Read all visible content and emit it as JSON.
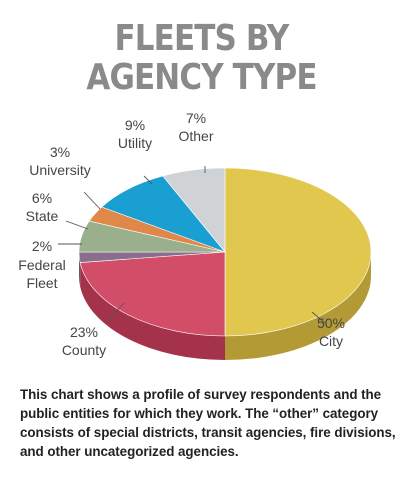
{
  "title_line1": "FLEETS BY",
  "title_line2": "AGENCY TYPE",
  "chart_data": {
    "type": "pie",
    "title": "FLEETS BY AGENCY TYPE",
    "slices": [
      {
        "label": "City",
        "value": 50,
        "display": "50%",
        "color": "#e2c74f",
        "side": "#b39a35"
      },
      {
        "label": "County",
        "value": 23,
        "display": "23%",
        "color": "#d24d68",
        "side": "#a3324a"
      },
      {
        "label": "Federal Fleet",
        "value": 2,
        "display": "2%",
        "color": "#8a6f8c",
        "side": "#6a536c"
      },
      {
        "label": "State",
        "value": 6,
        "display": "6%",
        "color": "#9ab08d",
        "side": "#748a68"
      },
      {
        "label": "University",
        "value": 3,
        "display": "3%",
        "color": "#e0874a",
        "side": "#b06631"
      },
      {
        "label": "Utility",
        "value": 9,
        "display": "9%",
        "color": "#1a9fd3",
        "side": "#137ba5"
      },
      {
        "label": "Other",
        "value": 7,
        "display": "7%",
        "color": "#cfd3d6",
        "side": "#a7abae"
      }
    ]
  },
  "caption": "This chart shows a profile of survey respondents and the public entities for which they work. The “other” category consists of special districts, transit agencies, fire divisions, and other uncategorized agencies."
}
